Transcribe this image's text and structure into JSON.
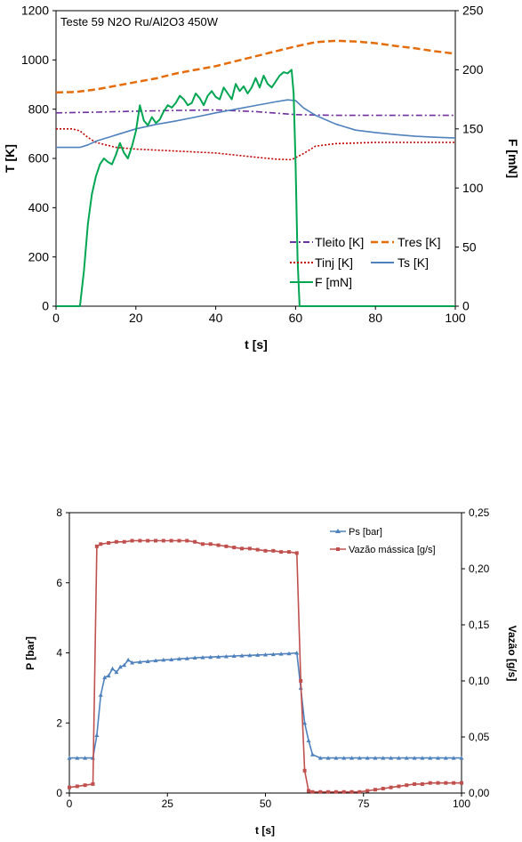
{
  "chart_data": [
    {
      "type": "line",
      "title": "Teste 59 N2O Ru/Al2O3 450W",
      "xlabel": "t [s]",
      "ylabel": "T [K]",
      "y2label": "F [mN]",
      "xlim": [
        0,
        100
      ],
      "ylim": [
        0,
        1200
      ],
      "y2lim": [
        0,
        250
      ],
      "xticks": [
        "0",
        "20",
        "40",
        "60",
        "80",
        "100"
      ],
      "yticks": [
        "0",
        "200",
        "400",
        "600",
        "800",
        "1000",
        "1200"
      ],
      "y2ticks": [
        "0",
        "50",
        "100",
        "150",
        "200",
        "250"
      ],
      "legend_position": "inside-bottom-right",
      "series": [
        {
          "name": "Tleito [K]",
          "axis": "left",
          "color": "#7030A0",
          "dash": "dashdot",
          "x": [
            0,
            10,
            20,
            30,
            40,
            50,
            60,
            70,
            80,
            90,
            100
          ],
          "y": [
            785,
            788,
            792,
            795,
            797,
            790,
            778,
            775,
            775,
            775,
            775
          ]
        },
        {
          "name": "Tres [K]",
          "axis": "left",
          "color": "#E46C0A",
          "dash": "dash",
          "x": [
            0,
            5,
            10,
            15,
            20,
            25,
            30,
            35,
            40,
            45,
            50,
            55,
            60,
            65,
            70,
            75,
            80,
            85,
            90,
            95,
            100
          ],
          "y": [
            868,
            870,
            880,
            895,
            910,
            925,
            945,
            960,
            975,
            995,
            1015,
            1035,
            1055,
            1072,
            1078,
            1075,
            1068,
            1057,
            1047,
            1035,
            1025
          ]
        },
        {
          "name": "Tinj [K]",
          "axis": "left",
          "color": "#C00000",
          "dash": "dot",
          "x": [
            0,
            4,
            6,
            8,
            10,
            15,
            20,
            30,
            40,
            50,
            55,
            59,
            62,
            65,
            70,
            80,
            90,
            100
          ],
          "y": [
            720,
            720,
            712,
            685,
            665,
            645,
            638,
            630,
            622,
            605,
            597,
            595,
            620,
            650,
            660,
            665,
            665,
            665
          ]
        },
        {
          "name": "Ts [K]",
          "axis": "left",
          "color": "#4F81BD",
          "dash": "solid",
          "x": [
            0,
            6,
            8,
            10,
            15,
            20,
            25,
            30,
            35,
            40,
            45,
            50,
            55,
            58,
            60,
            62,
            65,
            70,
            75,
            80,
            85,
            90,
            95,
            100
          ],
          "y": [
            645,
            645,
            655,
            670,
            695,
            720,
            738,
            752,
            768,
            785,
            800,
            815,
            830,
            838,
            835,
            805,
            775,
            740,
            715,
            705,
            697,
            690,
            686,
            683
          ]
        },
        {
          "name": "F [mN]",
          "axis": "right",
          "color": "#00A651",
          "dash": "solid",
          "x": [
            0,
            6,
            7,
            8,
            9,
            10,
            11,
            12,
            13,
            14,
            15,
            16,
            17,
            18,
            19,
            20,
            21,
            22,
            23,
            24,
            25,
            26,
            27,
            28,
            29,
            30,
            31,
            32,
            33,
            34,
            35,
            36,
            37,
            38,
            39,
            40,
            41,
            42,
            43,
            44,
            45,
            46,
            47,
            48,
            49,
            50,
            51,
            52,
            53,
            54,
            55,
            56,
            57,
            58,
            59,
            59.5,
            60,
            60.5,
            61,
            62,
            100
          ],
          "y": [
            0,
            0,
            30,
            70,
            95,
            110,
            120,
            125,
            122,
            120,
            128,
            138,
            130,
            125,
            135,
            148,
            170,
            157,
            153,
            160,
            155,
            158,
            165,
            170,
            168,
            172,
            178,
            175,
            170,
            172,
            180,
            176,
            170,
            178,
            182,
            177,
            175,
            185,
            180,
            175,
            188,
            182,
            186,
            180,
            185,
            193,
            185,
            195,
            188,
            185,
            190,
            195,
            198,
            197,
            200,
            180,
            120,
            40,
            0,
            0,
            0
          ]
        }
      ]
    },
    {
      "type": "line",
      "xlabel": "t [s]",
      "ylabel": "P [bar]",
      "y2label": "Vazão [g/s]",
      "xlim": [
        0,
        100
      ],
      "ylim": [
        0,
        8
      ],
      "y2lim": [
        0,
        0.25
      ],
      "xticks": [
        "0",
        "25",
        "50",
        "75",
        "100"
      ],
      "yticks": [
        "0",
        "2",
        "4",
        "6",
        "8"
      ],
      "y2ticks": [
        "0,00",
        "0,05",
        "0,10",
        "0,15",
        "0,20",
        "0,25"
      ],
      "legend_position": "top-right",
      "series": [
        {
          "name": "Ps [bar]",
          "axis": "left",
          "color": "#4F81BD",
          "marker": "triangle",
          "x": [
            0,
            2,
            4,
            6,
            7,
            8,
            9,
            10,
            11,
            12,
            13,
            14,
            15,
            16,
            18,
            20,
            22,
            24,
            26,
            28,
            30,
            32,
            34,
            36,
            38,
            40,
            42,
            44,
            46,
            48,
            50,
            52,
            54,
            56,
            58,
            59,
            60,
            61,
            62,
            64,
            66,
            68,
            70,
            72,
            74,
            76,
            78,
            80,
            82,
            84,
            86,
            88,
            90,
            92,
            94,
            96,
            98,
            100
          ],
          "y": [
            1.0,
            1.0,
            1.0,
            1.0,
            1.65,
            2.8,
            3.3,
            3.35,
            3.55,
            3.45,
            3.6,
            3.65,
            3.8,
            3.72,
            3.74,
            3.76,
            3.78,
            3.8,
            3.81,
            3.83,
            3.84,
            3.86,
            3.87,
            3.88,
            3.89,
            3.9,
            3.91,
            3.92,
            3.93,
            3.94,
            3.95,
            3.96,
            3.97,
            3.98,
            4.0,
            3.0,
            2.0,
            1.5,
            1.1,
            1.0,
            1.0,
            1.0,
            1.0,
            1.0,
            1.0,
            1.0,
            1.0,
            1.0,
            1.0,
            1.0,
            1.0,
            1.0,
            1.0,
            1.0,
            1.0,
            1.0,
            1.0,
            1.0
          ]
        },
        {
          "name": "Vazão mássica [g/s]",
          "axis": "right",
          "color": "#C0504D",
          "marker": "square",
          "x": [
            0,
            2,
            4,
            6,
            7,
            8,
            10,
            12,
            14,
            16,
            18,
            20,
            22,
            24,
            26,
            28,
            30,
            32,
            34,
            36,
            38,
            40,
            42,
            44,
            46,
            48,
            50,
            52,
            54,
            56,
            58,
            59,
            60,
            61,
            62,
            64,
            66,
            68,
            70,
            72,
            74,
            76,
            78,
            80,
            82,
            84,
            86,
            88,
            90,
            92,
            94,
            96,
            98,
            100
          ],
          "y": [
            0.005,
            0.006,
            0.007,
            0.008,
            0.22,
            0.222,
            0.223,
            0.224,
            0.224,
            0.225,
            0.225,
            0.225,
            0.225,
            0.225,
            0.225,
            0.225,
            0.225,
            0.224,
            0.222,
            0.222,
            0.221,
            0.22,
            0.219,
            0.218,
            0.218,
            0.217,
            0.216,
            0.216,
            0.215,
            0.215,
            0.214,
            0.1,
            0.02,
            0.002,
            0.001,
            0.001,
            0.001,
            0.001,
            0.001,
            0.001,
            0.001,
            0.002,
            0.003,
            0.004,
            0.005,
            0.006,
            0.007,
            0.008,
            0.008,
            0.009,
            0.009,
            0.009,
            0.009,
            0.009
          ]
        }
      ]
    }
  ]
}
